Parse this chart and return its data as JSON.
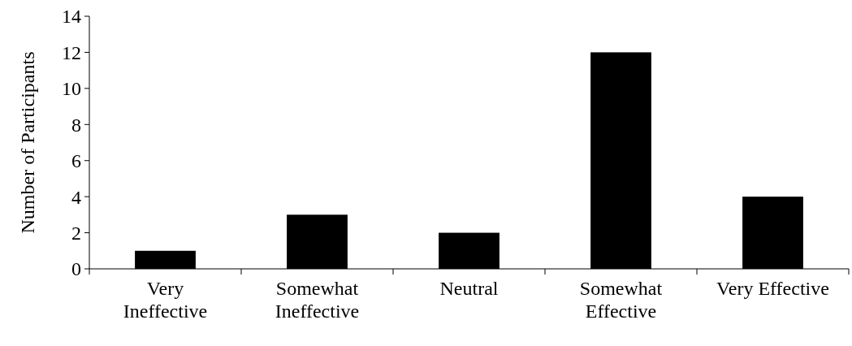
{
  "chart_data": {
    "type": "bar",
    "ylabel": "Number of Participants",
    "categories": [
      "Very\nIneffective",
      "Somewhat\nIneffective",
      "Neutral",
      "Somewhat\nEffective",
      "Very Effective"
    ],
    "values": [
      1,
      3,
      2,
      12,
      4
    ],
    "color": "#000000",
    "ylim": [
      0,
      14
    ],
    "yticks": [
      0,
      2,
      4,
      6,
      8,
      10,
      12,
      14
    ],
    "grid": false
  }
}
